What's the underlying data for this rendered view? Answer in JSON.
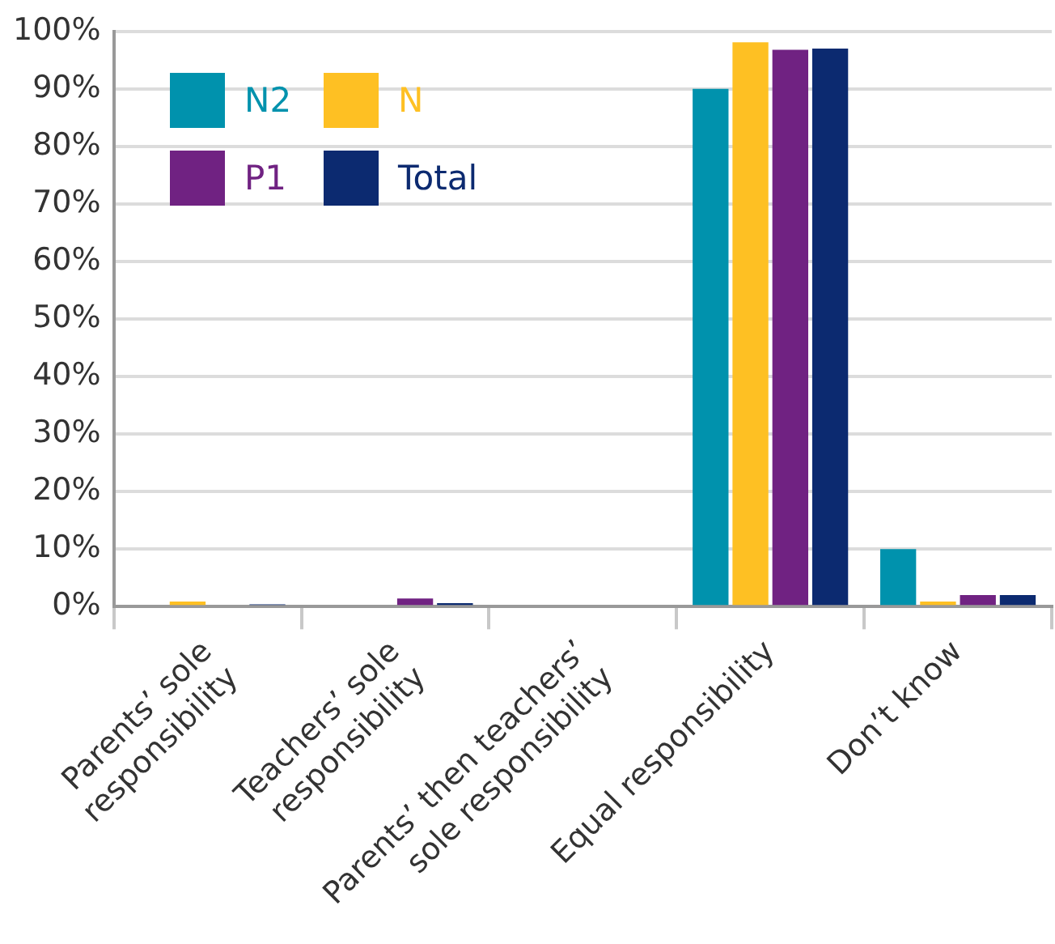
{
  "chart_data": {
    "type": "bar",
    "categories": [
      "Parents’ sole responsibility",
      "Teachers’ sole responsibility",
      "Parents’ then teachers’ sole responsibility",
      "Equal responsibility",
      "Don’t know"
    ],
    "series": [
      {
        "name": "N2",
        "color": "#0092ad",
        "values": [
          0,
          0,
          0,
          90,
          10
        ]
      },
      {
        "name": "N",
        "color": "#fec023",
        "values": [
          0.9,
          0,
          0,
          98.1,
          0.9
        ]
      },
      {
        "name": "P1",
        "color": "#702282",
        "values": [
          0,
          1.4,
          0,
          96.8,
          2
        ]
      },
      {
        "name": "Total",
        "color": "#0c2a70",
        "values": [
          0.4,
          0.6,
          0,
          97,
          2
        ]
      }
    ],
    "ylim": [
      0,
      100
    ],
    "yticks": [
      {
        "value": 0,
        "label": "0%"
      },
      {
        "value": 10,
        "label": "10%"
      },
      {
        "value": 20,
        "label": "20%"
      },
      {
        "value": 30,
        "label": "30%"
      },
      {
        "value": 40,
        "label": "40%"
      },
      {
        "value": 50,
        "label": "50%"
      },
      {
        "value": 60,
        "label": "60%"
      },
      {
        "value": 70,
        "label": "70%"
      },
      {
        "value": 80,
        "label": "80%"
      },
      {
        "value": 90,
        "label": "90%"
      },
      {
        "value": 100,
        "label": "100%"
      }
    ],
    "grid": "y",
    "legend": "top left"
  }
}
